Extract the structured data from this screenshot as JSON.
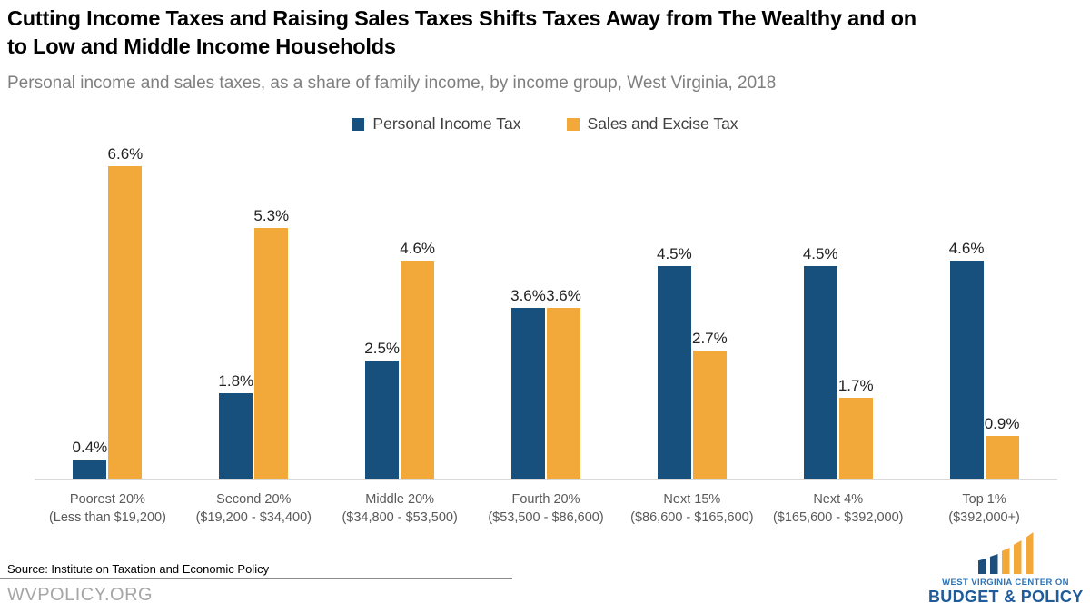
{
  "header": {
    "title_line1": "Cutting Income Taxes and Raising Sales Taxes Shifts Taxes Away from The Wealthy and on",
    "title_line2": "to Low and Middle Income Households",
    "subtitle": "Personal income and sales taxes, as a share of family income, by income group, West Virginia, 2018"
  },
  "legend": [
    {
      "label": "Personal Income Tax",
      "color": "#17507C"
    },
    {
      "label": "Sales and Excise Tax",
      "color": "#F2A93A"
    }
  ],
  "chart_data": {
    "type": "bar",
    "title": "Cutting Income Taxes and Raising Sales Taxes Shifts Taxes Away from The Wealthy and on to Low and Middle Income Households",
    "subtitle": "Personal income and sales taxes, as a share of family income, by income group, West Virginia, 2018",
    "categories": [
      {
        "line1": "Poorest 20%",
        "line2": "(Less than $19,200)"
      },
      {
        "line1": "Second 20%",
        "line2": "($19,200 - $34,400)"
      },
      {
        "line1": "Middle 20%",
        "line2": "($34,800 - $53,500)"
      },
      {
        "line1": "Fourth 20%",
        "line2": "($53,500 - $86,600)"
      },
      {
        "line1": "Next 15%",
        "line2": "($86,600 - $165,600)"
      },
      {
        "line1": "Next 4%",
        "line2": "($165,600 - $392,000)"
      },
      {
        "line1": "Top 1%",
        "line2": "($392,000+)"
      }
    ],
    "series": [
      {
        "name": "Personal Income Tax",
        "color": "#17507C",
        "values": [
          0.4,
          1.8,
          2.5,
          3.6,
          4.5,
          4.5,
          4.6
        ]
      },
      {
        "name": "Sales and Excise Tax",
        "color": "#F2A93A",
        "values": [
          6.6,
          5.3,
          4.6,
          3.6,
          2.7,
          1.7,
          0.9
        ]
      }
    ],
    "value_suffix": "%",
    "ylim": [
      0,
      7
    ],
    "grid": false,
    "legend_position": "top",
    "xlabel": "",
    "ylabel": ""
  },
  "footer": {
    "source": "Source: Institute on Taxation and Economic Policy",
    "website": "WVPOLICY.ORG"
  },
  "logo": {
    "line1": "WEST VIRGINIA CENTER ON",
    "line2": "BUDGET & POLICY",
    "text_color1": "#2E74B5",
    "text_color2": "#1F5C99",
    "bar_blue": "#1D4F7C",
    "bar_gold": "#F2A93A",
    "bar_heights": [
      17,
      22,
      29,
      37,
      46
    ],
    "bar_colors_pattern": [
      "blue",
      "blue",
      "gold",
      "gold",
      "gold"
    ]
  },
  "style": {
    "axis_line_color": "#d9d9d9",
    "label_color": "#222222",
    "tick_label_color": "#595959"
  }
}
